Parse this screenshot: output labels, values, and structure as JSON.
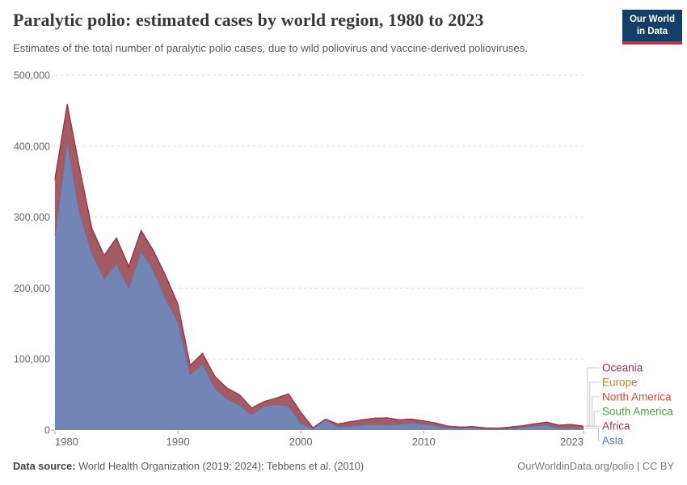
{
  "header": {
    "title": "Paralytic polio: estimated cases by world region, 1980 to 2023",
    "subtitle": "Estimates of the total number of paralytic polio cases, due to wild poliovirus and vaccine-derived polioviruses.",
    "logo": {
      "line1": "Our World",
      "line2": "in Data",
      "bg_color": "#153e67",
      "accent_color": "#c5303e"
    }
  },
  "chart_data": {
    "type": "area",
    "stacked": true,
    "title": "Paralytic polio: estimated cases by world region, 1980 to 2023",
    "xlabel": "",
    "ylabel": "",
    "xlim": [
      1980,
      2023
    ],
    "ylim": [
      0,
      500000
    ],
    "grid": "dashed-horizontal",
    "legend_position": "right",
    "x": [
      1980,
      1981,
      1982,
      1983,
      1984,
      1985,
      1986,
      1987,
      1988,
      1989,
      1990,
      1991,
      1992,
      1993,
      1994,
      1995,
      1996,
      1997,
      1998,
      1999,
      2000,
      2001,
      2002,
      2003,
      2004,
      2005,
      2006,
      2007,
      2008,
      2009,
      2010,
      2011,
      2012,
      2013,
      2014,
      2015,
      2016,
      2017,
      2018,
      2019,
      2020,
      2021,
      2022,
      2023
    ],
    "xticks": [
      1980,
      1990,
      2000,
      2010,
      2023
    ],
    "yticks": [
      0,
      100000,
      200000,
      300000,
      400000,
      500000
    ],
    "ytick_labels": [
      "0",
      "100,000",
      "200,000",
      "300,000",
      "400,000",
      "500,000"
    ],
    "series": [
      {
        "name": "Asia",
        "fill": "#7286b5",
        "line": "#5672aa",
        "text_color": "#5976b5",
        "values": [
          274000,
          406000,
          306000,
          249000,
          213000,
          234000,
          200000,
          252000,
          225000,
          185000,
          152000,
          78000,
          93000,
          59000,
          44000,
          35000,
          22000,
          33000,
          36000,
          34000,
          9000,
          2000,
          14000,
          4500,
          5300,
          6800,
          7900,
          7200,
          8300,
          9800,
          7900,
          6000,
          3400,
          2600,
          3400,
          1500,
          1100,
          1900,
          3400,
          5300,
          7000,
          3000,
          3400,
          2600
        ]
      },
      {
        "name": "Africa",
        "fill": "#a55b64",
        "line": "#8f3f4d",
        "text_color": "#9a3a49",
        "values": [
          77000,
          50000,
          61000,
          33000,
          31000,
          35000,
          29000,
          28000,
          27000,
          32000,
          25000,
          13000,
          15000,
          17000,
          15000,
          15000,
          9000,
          7000,
          9000,
          17000,
          16000,
          1200,
          1500,
          4000,
          6400,
          7500,
          8700,
          10000,
          6000,
          5700,
          4900,
          3800,
          1900,
          1600,
          1500,
          1500,
          1500,
          2200,
          2600,
          3400,
          4000,
          3800,
          4500,
          2700
        ]
      },
      {
        "name": "South America",
        "fill": "#77ab71",
        "line": "#4c8c47",
        "text_color": "#55964f",
        "values": [
          2600,
          2500,
          2300,
          2000,
          1700,
          1500,
          1300,
          1100,
          900,
          600,
          350,
          150,
          50,
          20,
          10,
          10,
          10,
          10,
          10,
          10,
          10,
          10,
          10,
          10,
          10,
          10,
          10,
          10,
          10,
          10,
          10,
          10,
          10,
          10,
          10,
          10,
          10,
          10,
          10,
          10,
          10,
          10,
          10,
          10
        ]
      },
      {
        "name": "North America",
        "fill": "#d96f5b",
        "line": "#c44a33",
        "text_color": "#cf4b34",
        "values": [
          80,
          70,
          60,
          50,
          40,
          30,
          25,
          20,
          15,
          10,
          5,
          5,
          5,
          5,
          5,
          5,
          5,
          5,
          5,
          5,
          5,
          5,
          5,
          5,
          5,
          5,
          5,
          5,
          5,
          5,
          5,
          5,
          5,
          5,
          5,
          5,
          5,
          5,
          5,
          5,
          5,
          5,
          5,
          5
        ]
      },
      {
        "name": "Europe",
        "fill": "#d49a55",
        "line": "#b67527",
        "text_color": "#c5802f",
        "values": [
          700,
          600,
          500,
          450,
          400,
          350,
          300,
          250,
          200,
          150,
          120,
          100,
          80,
          60,
          50,
          40,
          30,
          20,
          20,
          20,
          20,
          20,
          20,
          20,
          20,
          20,
          20,
          20,
          20,
          20,
          20,
          20,
          20,
          20,
          20,
          20,
          20,
          20,
          20,
          20,
          20,
          20,
          20,
          20
        ]
      },
      {
        "name": "Oceania",
        "fill": "#b55584",
        "line": "#97255a",
        "text_color": "#a02b5e",
        "values": [
          30,
          30,
          25,
          25,
          20,
          20,
          15,
          15,
          10,
          10,
          10,
          10,
          5,
          5,
          5,
          5,
          5,
          5,
          5,
          5,
          5,
          5,
          5,
          5,
          5,
          5,
          5,
          5,
          5,
          5,
          5,
          5,
          5,
          5,
          5,
          5,
          5,
          5,
          5,
          5,
          5,
          5,
          5,
          5
        ]
      }
    ],
    "legend_order_top_to_bottom": [
      "Oceania",
      "Europe",
      "North America",
      "South America",
      "Africa",
      "Asia"
    ]
  },
  "footer": {
    "source_label": "Data source:",
    "source_text": " World Health Organization (2019; 2024); Tebbens et al. (2010)",
    "credit": "OurWorldinData.org/polio | CC BY"
  }
}
